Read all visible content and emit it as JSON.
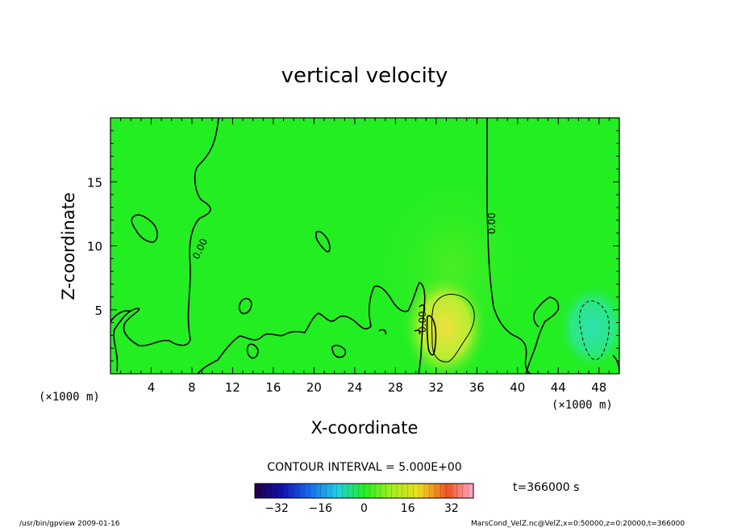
{
  "chart_data": {
    "type": "heatmap",
    "title": "vertical velocity",
    "xlabel": "X-coordinate",
    "ylabel": "Z-coordinate",
    "x_unit": "(×1000 m)",
    "x_unit_right": "(×1000 m)",
    "xlim": [
      0,
      50
    ],
    "ylim": [
      0,
      20
    ],
    "xticks": [
      4,
      8,
      12,
      16,
      20,
      24,
      28,
      32,
      36,
      40,
      44,
      48
    ],
    "yticks": [
      5,
      10,
      15
    ],
    "contour_interval": "CONTOUR INTERVAL = 5.000E+00",
    "contour_label": "0.00",
    "colorbar": {
      "range": [
        -40,
        40
      ],
      "ticks": [
        -32,
        -16,
        0,
        16,
        32
      ]
    },
    "time_label": "t=366000 s",
    "features": [
      {
        "type": "updraft",
        "x": 33,
        "z": 3,
        "value": 10
      },
      {
        "type": "downdraft",
        "x": 47,
        "z": 3,
        "value": -10
      }
    ]
  },
  "footer": {
    "left": "/usr/bin/gpview  2009-01-16",
    "right": "MarsCond_VelZ.nc@VelZ,x=0:50000,z=0:20000,t=366000"
  },
  "colors": {
    "background_field": "#22ee22",
    "updraft": "#eedd33",
    "downdraft": "#33ddaa"
  }
}
